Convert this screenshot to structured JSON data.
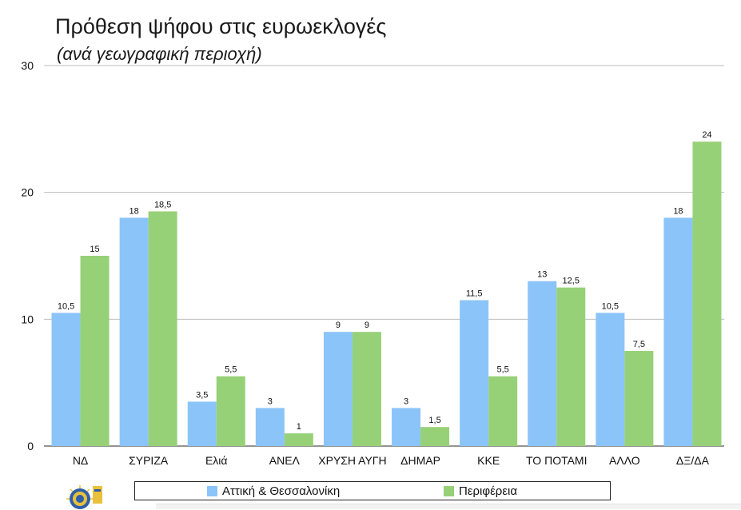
{
  "chart_data": {
    "type": "bar",
    "title": "Πρόθεση ψήφου στις ευρωεκλογές",
    "subtitle": "(ανά γεωγραφική περιοχή)",
    "xlabel": "",
    "ylabel": "",
    "ylim": [
      0,
      30
    ],
    "yticks": [
      0,
      10,
      20,
      30
    ],
    "grid": true,
    "legend_position": "bottom",
    "categories": [
      "ΝΔ",
      "ΣΥΡΙΖΑ",
      "Ελιά",
      "ΑΝΕΛ",
      "ΧΡΥΣΗ ΑΥΓΗ",
      "ΔΗΜΑΡ",
      "ΚΚΕ",
      "ΤΟ ΠΟΤΑΜΙ",
      "ΑΛΛΟ",
      "ΔΞ/ΔΑ"
    ],
    "series": [
      {
        "name": "Αττική & Θεσσαλονίκη",
        "color": "#8bc4f8",
        "values": [
          10.5,
          18,
          3.5,
          3,
          9,
          3,
          11.5,
          13,
          10.5,
          18
        ],
        "labels": [
          "10,5",
          "18",
          "3,5",
          "3",
          "9",
          "3",
          "11,5",
          "13",
          "10,5",
          "18"
        ]
      },
      {
        "name": "Περιφέρεια",
        "color": "#97d177",
        "values": [
          15,
          18.5,
          5.5,
          1,
          9,
          1.5,
          5.5,
          12.5,
          7.5,
          24
        ],
        "labels": [
          "15",
          "18,5",
          "5,5",
          "1",
          "9",
          "1,5",
          "5,5",
          "12,5",
          "7,5",
          "24"
        ]
      }
    ]
  }
}
